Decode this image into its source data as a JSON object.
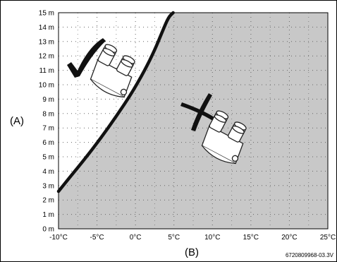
{
  "chart_data": {
    "type": "area",
    "x_unit": "°C",
    "y_unit": "m",
    "xlim": [
      -10,
      25
    ],
    "ylim": [
      0,
      15
    ],
    "x_ticks": [
      "-10°C",
      "-5°C",
      "0°C",
      "5°C",
      "10°C",
      "15°C",
      "20°C",
      "25°C"
    ],
    "y_ticks": [
      "0 m",
      "1 m",
      "2 m",
      "3 m",
      "4 m",
      "5 m",
      "6 m",
      "7 m",
      "8 m",
      "9 m",
      "10 m",
      "11 m",
      "12 m",
      "13 m",
      "14 m",
      "15 m"
    ],
    "ylabel": "(A)",
    "xlabel": "(B)",
    "grid": true,
    "boundary_curve": {
      "x": [
        -10,
        -8.5,
        -6.5,
        -4.5,
        -2.5,
        -0.5,
        1.2,
        2.5,
        3.5,
        4.3,
        4.9
      ],
      "y": [
        2.6,
        3.6,
        4.9,
        6.3,
        7.8,
        9.4,
        11.0,
        12.4,
        13.7,
        14.7,
        15.0
      ]
    },
    "regions": [
      {
        "side": "left",
        "fill": "#ffffff",
        "marker": "check"
      },
      {
        "side": "right",
        "fill": "#c8c8c8",
        "marker": "cross"
      }
    ],
    "colors": {
      "curve": "#111111",
      "shaded": "#c8c8c8",
      "grid_dots": "#666666"
    }
  },
  "reference_code": "6720809968-03.3V"
}
